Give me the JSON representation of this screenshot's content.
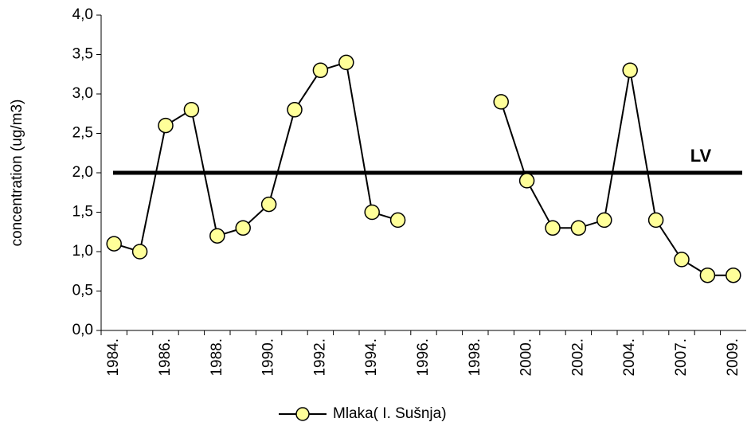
{
  "chart_data": {
    "type": "line",
    "y_label": "concentration (ug/m3)",
    "categories": [
      "1984.",
      null,
      "1986.",
      null,
      "1988.",
      null,
      "1990.",
      null,
      "1992.",
      null,
      "1994.",
      null,
      "1996.",
      null,
      "1998.",
      null,
      "2000.",
      null,
      "2002.",
      null,
      "2004.",
      null,
      "2007.",
      null,
      "2009."
    ],
    "series": [
      {
        "name": "Mlaka( I. Sušnja)",
        "color": "#000000",
        "marker_fill": "#ffff99",
        "values": [
          1.1,
          1.0,
          2.6,
          2.8,
          1.2,
          1.3,
          1.6,
          2.8,
          3.3,
          3.4,
          1.5,
          1.4,
          null,
          null,
          null,
          2.9,
          1.9,
          1.3,
          1.3,
          1.4,
          3.3,
          1.4,
          0.9,
          0.7,
          0.7
        ]
      }
    ],
    "reference_lines": [
      {
        "value": 2.0,
        "label": "LV"
      }
    ],
    "ylim": [
      0,
      4
    ],
    "yticks": [
      {
        "value": 0,
        "label": "0,0"
      },
      {
        "value": 0.5,
        "label": "0,5"
      },
      {
        "value": 1,
        "label": "1,0"
      },
      {
        "value": 1.5,
        "label": "1,5"
      },
      {
        "value": 2,
        "label": "2,0"
      },
      {
        "value": 2.5,
        "label": "2,5"
      },
      {
        "value": 3,
        "label": "3,0"
      },
      {
        "value": 3.5,
        "label": "3,5"
      },
      {
        "value": 4,
        "label": "4,0"
      }
    ],
    "legend": "bottom"
  }
}
